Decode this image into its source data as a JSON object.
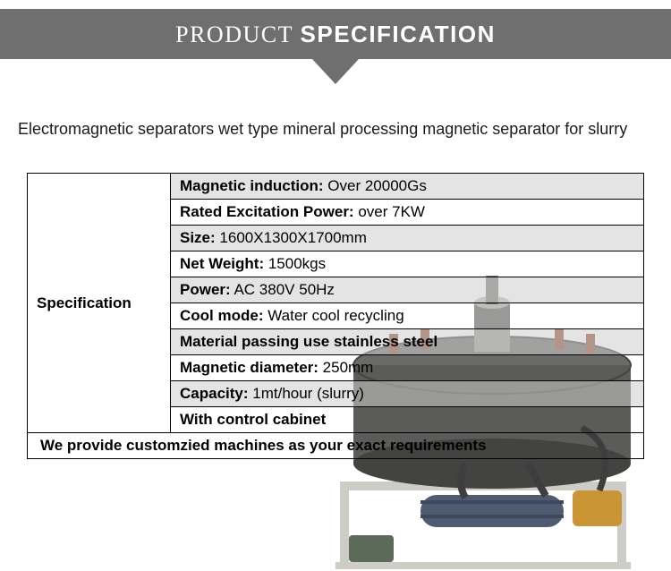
{
  "header": {
    "title_light": "PRODUCT ",
    "title_bold": "SPECIFICATION"
  },
  "description": "Electromagnetic separators wet type mineral processing magnetic separator for slurry",
  "spec": {
    "label": "Specification",
    "rows": [
      {
        "bold": "Magnetic induction:",
        "rest": " Over 20000Gs"
      },
      {
        "bold": "Rated Excitation Power:",
        "rest": " over 7KW"
      },
      {
        "bold": "Size:",
        "rest": " 1600X1300X1700mm"
      },
      {
        "bold": "Net Weight:",
        "rest": " 1500kgs"
      },
      {
        "bold": "Power:",
        "rest": " AC 380V 50Hz"
      },
      {
        "bold": "Cool mode:",
        "rest": " Water cool recycling"
      },
      {
        "bold": "Material passing use stainless steel",
        "rest": ""
      },
      {
        "bold": "Magnetic diameter:",
        "rest": " 250mm"
      },
      {
        "bold": "Capacity:",
        "rest": " 1mt/hour (slurry)"
      },
      {
        "bold": "With control cabinet",
        "rest": ""
      }
    ],
    "footer": "We provide customzied machines as your exact requirements"
  },
  "machine_svg": {
    "frame_color": "#c9c7c0",
    "vessel_color": "#4a4a48",
    "vessel_dark": "#2f2f2e",
    "pipe_color": "#2a2a2a",
    "pump_body": "#3b4a63",
    "accent": "#c58a1f",
    "valve": "#8a3a20"
  }
}
